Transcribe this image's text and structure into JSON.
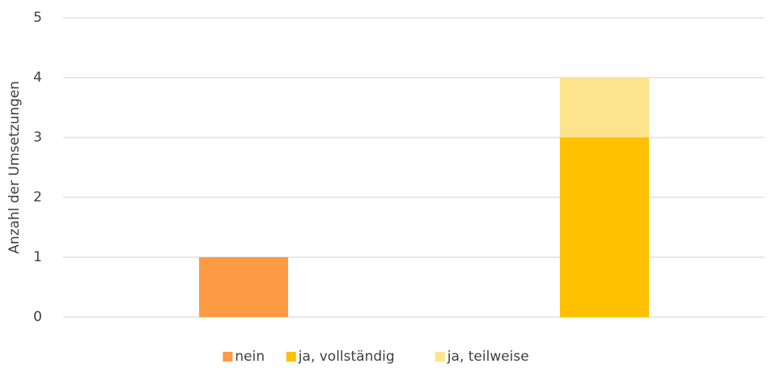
{
  "chart_data": {
    "type": "stacked_bar",
    "y_label": "Anzahl der Umsetzungen",
    "categories": [
      null,
      null
    ],
    "series": [
      {
        "name": "nein",
        "color": "#fd9a44",
        "values": [
          1,
          null
        ]
      },
      {
        "name": "ja, vollständig",
        "color": "#ffc000",
        "values": [
          null,
          3
        ]
      },
      {
        "name": "ja, teilweise",
        "color": "#fde38b",
        "values": [
          null,
          1
        ]
      }
    ],
    "ylim": [
      0,
      5
    ],
    "yticks": [
      0,
      1,
      2,
      3,
      4,
      5
    ],
    "grid": true,
    "legend": "bottom"
  }
}
